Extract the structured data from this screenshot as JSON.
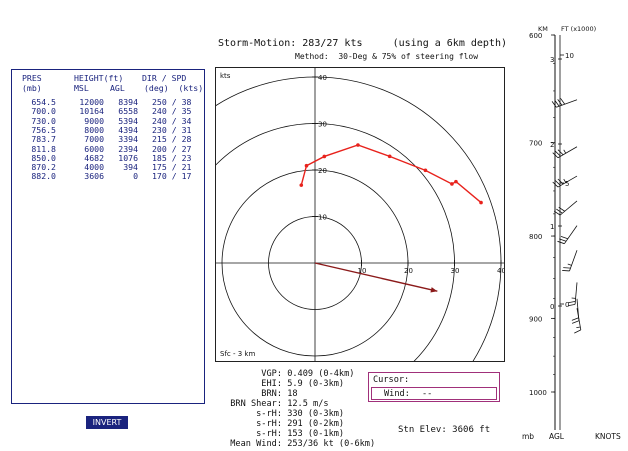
{
  "header": {
    "storm_motion": "Storm-Motion: 283/27 kts     (using a 6km depth)",
    "method": "Method:  30-Deg & 75% of steering flow"
  },
  "table": {
    "headers": [
      {
        "col1": "PRES",
        "col2": "HEIGHT(ft)",
        "col3": "DIR / SPD"
      },
      {
        "col1": "(mb)",
        "col2a": "MSL",
        "col2b": "AGL",
        "col3": "(deg)  (kts)"
      }
    ],
    "rows": [
      [
        "654.5",
        "12000",
        "8394",
        "250 / 38"
      ],
      [
        "700.0",
        "10164",
        "6558",
        "240 / 35"
      ],
      [
        "730.0",
        "9000",
        "5394",
        "240 / 34"
      ],
      [
        "756.5",
        "8000",
        "4394",
        "230 / 31"
      ],
      [
        "783.7",
        "7000",
        "3394",
        "215 / 28"
      ],
      [
        "811.8",
        "6000",
        "2394",
        "200 / 27"
      ],
      [
        "850.0",
        "4682",
        "1076",
        "185 / 23"
      ],
      [
        "870.2",
        "4000",
        "394",
        "175 / 21"
      ],
      [
        "882.0",
        "3606",
        "0",
        "170 / 17"
      ]
    ]
  },
  "hodograph": {
    "units_label": "kts",
    "layer_label": "Sfc - 3 km",
    "ring_labels": [
      "10",
      "20",
      "30",
      "40"
    ],
    "x_tick_labels": [
      "10",
      "20",
      "30",
      "40"
    ]
  },
  "params": [
    {
      "label": "VGP:",
      "value": "0.409 (0-4km)"
    },
    {
      "label": "EHI:",
      "value": "5.9 (0-3km)"
    },
    {
      "label": "BRN:",
      "value": "18"
    },
    {
      "label": "BRN Shear:",
      "value": "12.5 m/s"
    },
    {
      "label": "s-rH:",
      "value": "330 (0-3km)"
    },
    {
      "label": "s-rH:",
      "value": "291 (0-2km)"
    },
    {
      "label": "s-rH:",
      "value": "153 (0-1km)"
    },
    {
      "label": "Mean Wind:",
      "value": "253/36 kt (0-6km)"
    }
  ],
  "cursor": {
    "title": "Cursor:",
    "wind_label": "Wind:",
    "wind_value": "--"
  },
  "station": {
    "elevation": "Stn Elev: 3606 ft"
  },
  "invert_button": "INVERT",
  "profile": {
    "km_label": "KM",
    "ft_label": "FT (x1000)",
    "mb_label": "mb",
    "agl_label": "AGL",
    "knots_label": "KNOTS",
    "pressure_labels": [
      "600",
      "700",
      "800",
      "900",
      "1000"
    ],
    "km_ticks": [
      "3",
      "2",
      "1",
      "0"
    ],
    "ft_ticks": [
      "10",
      "5",
      "0"
    ]
  },
  "colors": {
    "table_blue": "#1a237e",
    "hodo_red": "#e8221c",
    "storm_vector": "#8b1a1a",
    "cursor_border": "#a0307a",
    "button_bg": "#1a237e"
  }
}
